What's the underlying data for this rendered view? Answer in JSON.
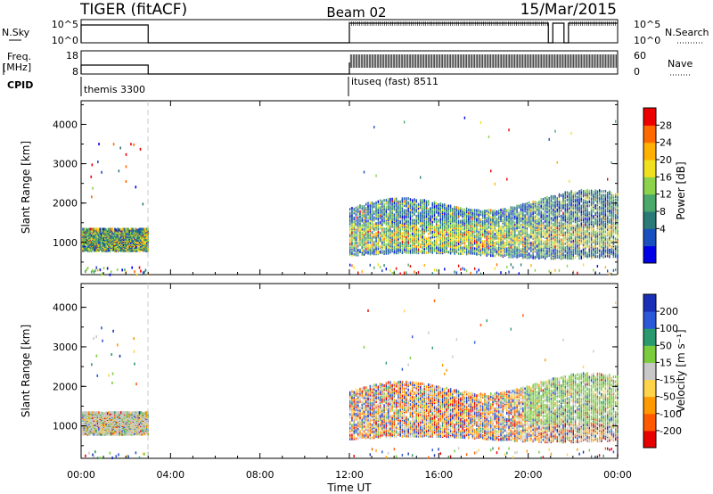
{
  "header": {
    "title": "TIGER (fitACF)",
    "beam": "Beam 02",
    "date": "15/Mar/2015"
  },
  "status_panels": {
    "nsky_label": "N.Sky",
    "nsky_ticks": [
      "10^5",
      "10^0"
    ],
    "nsearch_label": "N.Search",
    "nsearch_ticks": [
      "10^5",
      "10^0"
    ],
    "freq_label": "Freq.",
    "freq_unit": "[MHz]",
    "freq_ticks": [
      "18",
      "8"
    ],
    "nave_label": "Nave",
    "nave_ticks": [
      "60",
      "0"
    ],
    "cpid_label": "CPID",
    "cpid_entries": [
      {
        "label": "themis 3300",
        "start_hour": 0,
        "end_hour": 3
      },
      {
        "label": "ituseq (fast) 8511",
        "start_hour": 12,
        "end_hour": 24
      }
    ]
  },
  "colors": {
    "power_scale": [
      "#0000e6",
      "#1a4fbf",
      "#2b7a78",
      "#49a86a",
      "#8cd24a",
      "#f0e020",
      "#ffb000",
      "#ff6a00",
      "#ee0000"
    ],
    "velocity_scale": [
      "#1a2fb8",
      "#2b58d8",
      "#2a9a6e",
      "#7acc3c",
      "#c8c8c8",
      "#ffd34a",
      "#ff9900",
      "#ff5a00",
      "#e60000"
    ],
    "dashed_gap_line": "#c8c8c8"
  },
  "chart_data": [
    {
      "type": "heatmap",
      "title": "",
      "xlabel": "Time UT",
      "ylabel": "Slant Range [km]",
      "x_ticks": [
        "00:00",
        "04:00",
        "08:00",
        "12:00",
        "16:00",
        "20:00",
        "00:00"
      ],
      "xlim_hours": [
        0,
        24
      ],
      "y_ticks": [
        "1000",
        "2000",
        "3000",
        "4000"
      ],
      "ylim": [
        180,
        4600
      ],
      "colorbar": {
        "label": "Power [dB]",
        "ticks": [
          "28",
          "24",
          "20",
          "16",
          "12",
          "8",
          "4"
        ],
        "range": [
          0,
          30
        ]
      },
      "data_gap_hours": [
        3,
        12
      ],
      "scatter_bands": [
        {
          "start_hour": 0,
          "end_hour": 3,
          "range_min_km": 800,
          "range_max_km": 1400,
          "typical_db": 20
        },
        {
          "start_hour": 12,
          "end_hour": 24,
          "range_min_km": 700,
          "range_max_km": 2200,
          "typical_db": 14
        }
      ]
    },
    {
      "type": "heatmap",
      "title": "",
      "xlabel": "Time UT",
      "ylabel": "Slant Range [km]",
      "x_ticks": [
        "00:00",
        "04:00",
        "08:00",
        "12:00",
        "16:00",
        "20:00",
        "00:00"
      ],
      "xlim_hours": [
        0,
        24
      ],
      "y_ticks": [
        "1000",
        "2000",
        "3000",
        "4000"
      ],
      "ylim": [
        180,
        4600
      ],
      "colorbar": {
        "label": "Velocity [m s⁻¹]",
        "ticks": [
          "200",
          "100",
          "50",
          "15",
          "-15",
          "-50",
          "-100",
          "-200"
        ],
        "range": [
          -250,
          250
        ]
      },
      "data_gap_hours": [
        3,
        12
      ],
      "scatter_bands": [
        {
          "start_hour": 0,
          "end_hour": 3,
          "range_min_km": 800,
          "range_max_km": 1400,
          "typical_velocity": 0
        },
        {
          "start_hour": 12,
          "end_hour": 24,
          "range_min_km": 700,
          "range_max_km": 2200,
          "typical_velocity": -30
        }
      ]
    }
  ]
}
